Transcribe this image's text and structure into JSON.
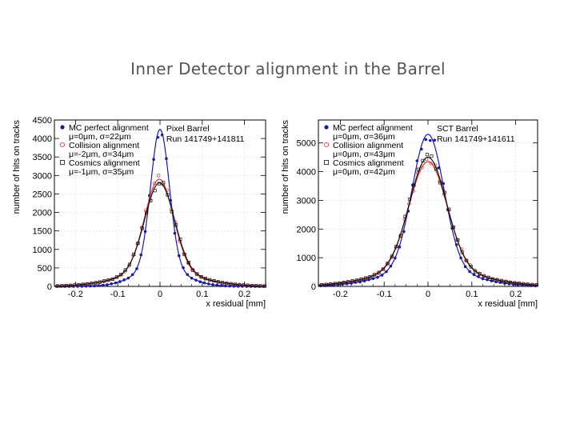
{
  "slide": {
    "title": "Inner Detector alignment in the Barrel"
  },
  "colors": {
    "mc": "#1a1aa6",
    "collision": "#e03030",
    "cosmics": "#111111",
    "axis": "#000000",
    "grid": "#dddddd"
  },
  "chart_data": [
    {
      "type": "scatter",
      "xlabel": "x residual [mm]",
      "ylabel": "number of hits on tracks",
      "xlim": [
        -0.25,
        0.25
      ],
      "ylim": [
        0,
        4500
      ],
      "yticks": [
        0,
        500,
        1000,
        1500,
        2000,
        2500,
        3000,
        3500,
        4000,
        4500
      ],
      "xticks": [
        -0.2,
        -0.1,
        0,
        0.1,
        0.2
      ],
      "xtick_labels": [
        "-0.2",
        "-0.1",
        "0",
        "0.1",
        "0.2"
      ],
      "grid": true,
      "legend_position": "top-left",
      "info_lines": [
        "Pixel Barrel",
        "Run 141749+141811"
      ],
      "series": [
        {
          "name": "MC perfect alignment",
          "detail": "μ=0μm, σ=22μm",
          "mu": 0.0,
          "sigma": 0.022,
          "peak": 4250,
          "tail": 0.12,
          "marker": "dot",
          "color": "#1a1aa6"
        },
        {
          "name": "Collision alignment",
          "detail": "μ=-2μm, σ=34μm",
          "mu": -0.002,
          "sigma": 0.034,
          "peak": 2900,
          "tail": 0.14,
          "marker": "circle",
          "color": "#e03030"
        },
        {
          "name": "Cosmics alignment",
          "detail": "μ=-1μm, σ=35μm",
          "mu": -0.001,
          "sigma": 0.035,
          "peak": 2800,
          "tail": 0.14,
          "marker": "square",
          "color": "#111111"
        }
      ]
    },
    {
      "type": "scatter",
      "xlabel": "x residual [mm]",
      "ylabel": "number of hits on tracks",
      "xlim": [
        -0.25,
        0.25
      ],
      "ylim": [
        0,
        5800
      ],
      "yticks": [
        0,
        1000,
        2000,
        3000,
        4000,
        5000
      ],
      "xticks": [
        -0.2,
        -0.1,
        0,
        0.1,
        0.2
      ],
      "xtick_labels": [
        "-0.2",
        "-0.1",
        "0",
        "0.1",
        "0.2"
      ],
      "grid": true,
      "legend_position": "top-left",
      "info_lines": [
        "SCT Barrel",
        "Run 141749+141611"
      ],
      "series": [
        {
          "name": "MC perfect alignment",
          "detail": "μ=0μm, σ=36μm",
          "mu": 0.0,
          "sigma": 0.036,
          "peak": 5300,
          "tail": 0.12,
          "marker": "dot",
          "color": "#1a1aa6"
        },
        {
          "name": "Collision alignment",
          "detail": "μ=0μm, σ=43μm",
          "mu": 0.0,
          "sigma": 0.043,
          "peak": 4350,
          "tail": 0.14,
          "marker": "circle",
          "color": "#e03030"
        },
        {
          "name": "Cosmics alignment",
          "detail": "μ=0μm, σ=42μm",
          "mu": 0.0,
          "sigma": 0.042,
          "peak": 4500,
          "tail": 0.14,
          "marker": "square",
          "color": "#111111"
        }
      ]
    }
  ]
}
